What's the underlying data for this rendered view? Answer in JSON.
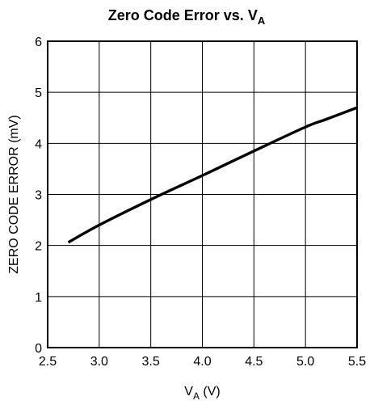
{
  "chart_data": {
    "type": "line",
    "title": {
      "main": "Zero Code Error vs. V",
      "sub": "A"
    },
    "xlabel": {
      "pre": "V",
      "sub": "A",
      "post": " (V)"
    },
    "ylabel": "ZERO CODE ERROR (mV)",
    "xlim": [
      2.5,
      5.5
    ],
    "ylim": [
      0,
      6
    ],
    "xticks": [
      2.5,
      3.0,
      3.5,
      4.0,
      4.5,
      5.0,
      5.5
    ],
    "xtick_labels": [
      "2.5",
      "3.0",
      "3.5",
      "4.0",
      "4.5",
      "5.0",
      "5.5"
    ],
    "yticks": [
      0,
      1,
      2,
      3,
      4,
      5,
      6
    ],
    "ytick_labels": [
      "0",
      "1",
      "2",
      "3",
      "4",
      "5",
      "6"
    ],
    "grid": true,
    "series": [
      {
        "x": [
          2.7,
          3.0,
          3.5,
          4.0,
          4.5,
          5.0,
          5.2,
          5.5
        ],
        "y": [
          2.06,
          2.4,
          2.9,
          3.37,
          3.85,
          4.32,
          4.47,
          4.7
        ]
      }
    ],
    "colors": {
      "line": "#000000",
      "grid": "#000000",
      "background": "#ffffff"
    }
  }
}
